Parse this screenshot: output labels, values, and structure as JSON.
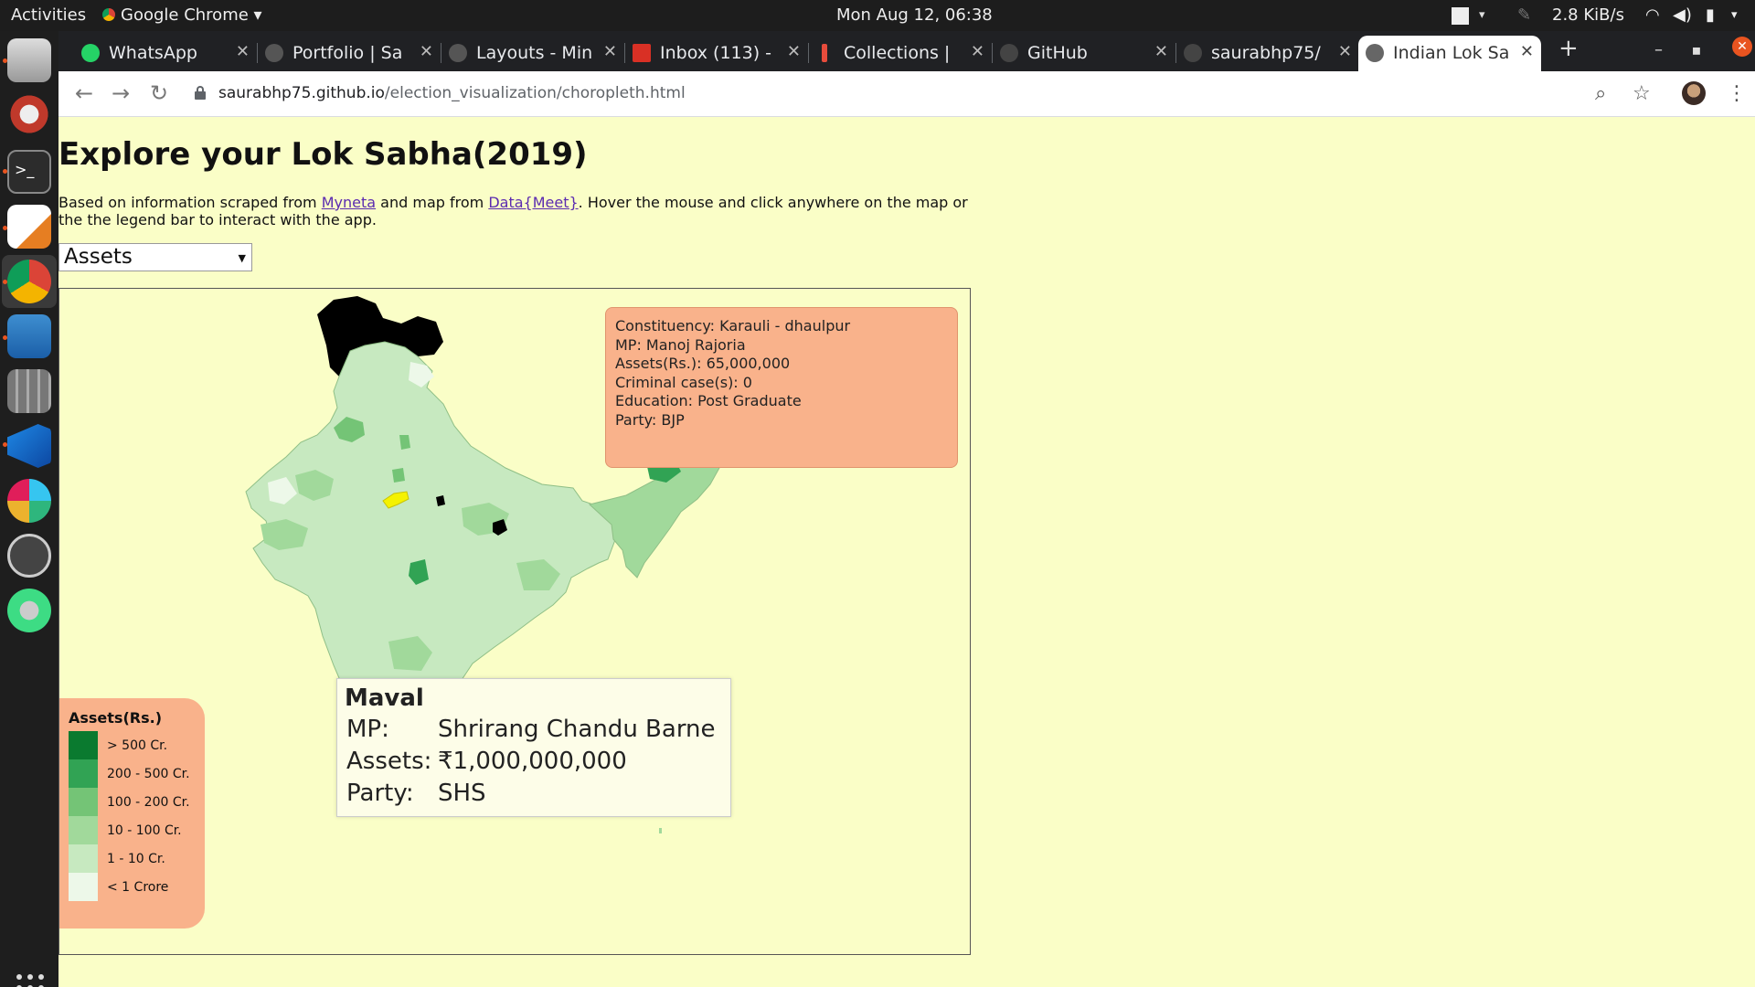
{
  "topbar": {
    "activities": "Activities",
    "app_name": "Google Chrome",
    "clock": "Mon Aug 12, 06:38",
    "net_speed": "2.8 KiB/s"
  },
  "dock": {
    "items": [
      "files-icon",
      "settings-icon",
      "terminal-icon",
      "text-editor-icon",
      "chrome-icon",
      "writer-icon",
      "calculator-icon",
      "vscode-icon",
      "slack-icon",
      "software-updater-icon",
      "android-studio-icon"
    ]
  },
  "tabs": [
    {
      "title": "WhatsApp",
      "color": "#25d366"
    },
    {
      "title": "Portfolio | Sa",
      "color": "#555555"
    },
    {
      "title": "Layouts - Min",
      "color": "#555555"
    },
    {
      "title": "Inbox (113) -",
      "color": "#d93025"
    },
    {
      "title": "Collections |",
      "color": "#e74c3c"
    },
    {
      "title": "GitHub",
      "color": "#444444"
    },
    {
      "title": "saurabhp75/",
      "color": "#444444"
    },
    {
      "title": "Indian Lok Sa",
      "color": "#666666"
    }
  ],
  "address": {
    "host": "saurabhp75.github.io",
    "path": "/election_visualization/choropleth.html"
  },
  "page": {
    "title": "Explore your Lok Sabha(2019)",
    "desc_prefix": "Based on information scraped from ",
    "link1": "Myneta",
    "desc_mid": " and map from ",
    "link2": "Data{Meet}",
    "desc_suffix": ". Hover the mouse and click anywhere on the map or the the legend bar to interact with the app.",
    "select_value": "Assets"
  },
  "info": {
    "constituency": "Constituency: Karauli - dhaulpur",
    "mp": "MP: Manoj Rajoria",
    "assets": "Assets(Rs.): 65,000,000",
    "criminal": "Criminal case(s): 0",
    "education": "Education: Post Graduate",
    "party": "Party: BJP"
  },
  "legend": {
    "title": "Assets(Rs.)",
    "items": [
      {
        "label": "> 500 Cr.",
        "color": "#0a7a2f"
      },
      {
        "label": "200 - 500 Cr.",
        "color": "#31a354"
      },
      {
        "label": "100 - 200 Cr.",
        "color": "#74c476"
      },
      {
        "label": "10 - 100 Cr.",
        "color": "#a1d99b"
      },
      {
        "label": "1 - 10 Cr.",
        "color": "#c7e9c0"
      },
      {
        "label": "< 1 Crore",
        "color": "#edf8e9"
      }
    ]
  },
  "tooltip": {
    "title": "Maval",
    "mp_key": "MP:",
    "mp_val": "Shrirang Chandu Barne",
    "assets_key": "Assets:",
    "assets_val": "₹1,000,000,000",
    "party_key": "Party:",
    "party_val": "SHS"
  },
  "colors": {
    "page_bg": "#fafec7",
    "highlight": "#f5f200",
    "info_bg": "#f9b28b"
  }
}
